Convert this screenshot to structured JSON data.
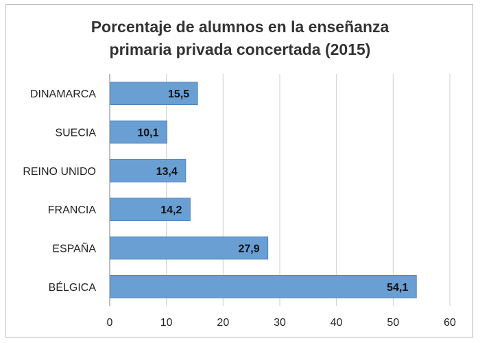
{
  "chart_data": {
    "type": "bar",
    "orientation": "horizontal",
    "title_lines": [
      "Porcentaje de alumnos en la enseñanza",
      "primaria privada concertada (2015)"
    ],
    "categories": [
      "DINAMARCA",
      "SUECIA",
      "REINO UNIDO",
      "FRANCIA",
      "ESPAÑA",
      "BÉLGICA"
    ],
    "values": [
      15.5,
      10.1,
      13.4,
      14.2,
      27.9,
      54.1
    ],
    "value_labels": [
      "15,5",
      "10,1",
      "13,4",
      "14,2",
      "27,9",
      "54,1"
    ],
    "xticks": [
      "0",
      "10",
      "20",
      "30",
      "40",
      "50",
      "60"
    ],
    "xlim": [
      0,
      60
    ],
    "grid": "vertical",
    "legend": "none",
    "colors": {
      "bar_fill": "#6a9fd4",
      "bar_stroke": "#4f86c0",
      "grid": "#cfcfcf",
      "axis": "#7f7f7f"
    }
  }
}
